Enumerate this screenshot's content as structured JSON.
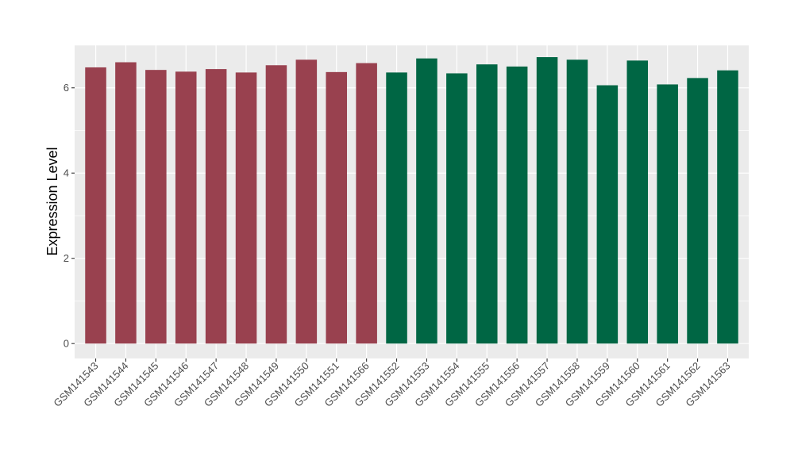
{
  "chart_data": {
    "type": "bar",
    "title": "",
    "xlabel": "",
    "ylabel": "Expression Level",
    "ylim": [
      -0.35,
      7.0
    ],
    "yticks": [
      0,
      2,
      4,
      6
    ],
    "ytick_labels": [
      "0",
      "2",
      "4",
      "6"
    ],
    "grid": true,
    "legend": "none",
    "panel_background": "#ebebeb",
    "gridline_color": "#ffffff",
    "categories": [
      "GSM141543",
      "GSM141544",
      "GSM141545",
      "GSM141546",
      "GSM141547",
      "GSM141548",
      "GSM141549",
      "GSM141550",
      "GSM141551",
      "GSM141566",
      "GSM141552",
      "GSM141553",
      "GSM141554",
      "GSM141555",
      "GSM141556",
      "GSM141557",
      "GSM141558",
      "GSM141559",
      "GSM141560",
      "GSM141561",
      "GSM141562",
      "GSM141563"
    ],
    "values": [
      6.48,
      6.6,
      6.42,
      6.38,
      6.44,
      6.36,
      6.53,
      6.66,
      6.37,
      6.58,
      6.36,
      6.69,
      6.34,
      6.55,
      6.5,
      6.72,
      6.66,
      6.06,
      6.64,
      6.08,
      6.23,
      6.41
    ],
    "groups": [
      "group1",
      "group1",
      "group1",
      "group1",
      "group1",
      "group1",
      "group1",
      "group1",
      "group1",
      "group1",
      "group2",
      "group2",
      "group2",
      "group2",
      "group2",
      "group2",
      "group2",
      "group2",
      "group2",
      "group2",
      "group2",
      "group2"
    ],
    "group_colors": {
      "group1": "#99414f",
      "group2": "#006644"
    }
  }
}
